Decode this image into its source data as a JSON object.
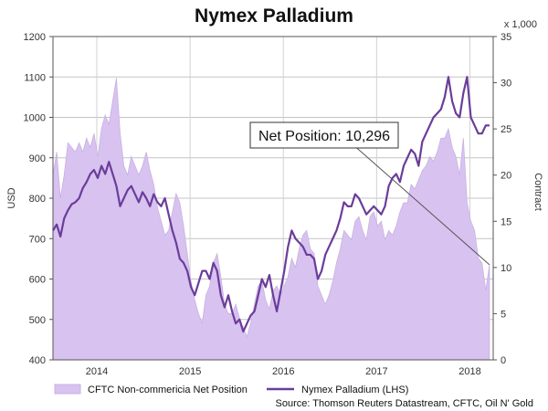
{
  "chart_data": {
    "type": "area+line",
    "title": "Nymex Palladium",
    "left_axis": {
      "label": "USD",
      "ylim": [
        400,
        1200
      ],
      "ticks": [
        400,
        500,
        600,
        700,
        800,
        900,
        1000,
        1100,
        1200
      ]
    },
    "right_axis": {
      "label": "Contract",
      "unit_label": "x 1,000",
      "ylim": [
        0,
        35
      ],
      "ticks": [
        0,
        5,
        10,
        15,
        20,
        25,
        30,
        35
      ]
    },
    "x_axis": {
      "xlim": [
        2013.58,
        2018.3
      ],
      "ticks": [
        2014.05,
        2015.05,
        2016.05,
        2017.05,
        2018.05
      ],
      "tick_labels": [
        "2014",
        "2015",
        "2016",
        "2017",
        "2018"
      ]
    },
    "grid": true,
    "series": [
      {
        "name": "CFTC Non-commericia Net Position",
        "type": "area",
        "axis": "right",
        "color": "#d8c2f0",
        "edge_color": "#c8b2e2",
        "x": [
          2013.58,
          2013.62,
          2013.66,
          2013.7,
          2013.74,
          2013.78,
          2013.82,
          2013.86,
          2013.9,
          2013.94,
          2013.98,
          2014.02,
          2014.06,
          2014.1,
          2014.14,
          2014.18,
          2014.22,
          2014.26,
          2014.3,
          2014.34,
          2014.38,
          2014.42,
          2014.46,
          2014.5,
          2014.54,
          2014.58,
          2014.62,
          2014.66,
          2014.7,
          2014.74,
          2014.78,
          2014.82,
          2014.86,
          2014.9,
          2014.94,
          2014.98,
          2015.02,
          2015.06,
          2015.1,
          2015.14,
          2015.18,
          2015.22,
          2015.26,
          2015.3,
          2015.34,
          2015.38,
          2015.42,
          2015.46,
          2015.5,
          2015.54,
          2015.58,
          2015.62,
          2015.66,
          2015.7,
          2015.74,
          2015.78,
          2015.82,
          2015.86,
          2015.9,
          2015.94,
          2015.98,
          2016.02,
          2016.06,
          2016.1,
          2016.14,
          2016.18,
          2016.22,
          2016.26,
          2016.3,
          2016.34,
          2016.38,
          2016.42,
          2016.46,
          2016.5,
          2016.54,
          2016.58,
          2016.62,
          2016.66,
          2016.7,
          2016.74,
          2016.78,
          2016.82,
          2016.86,
          2016.9,
          2016.94,
          2016.98,
          2017.02,
          2017.06,
          2017.1,
          2017.14,
          2017.18,
          2017.22,
          2017.26,
          2017.3,
          2017.34,
          2017.38,
          2017.42,
          2017.46,
          2017.5,
          2017.54,
          2017.58,
          2017.62,
          2017.66,
          2017.7,
          2017.74,
          2017.78,
          2017.82,
          2017.86,
          2017.9,
          2017.94,
          2017.98,
          2018.02,
          2018.06,
          2018.1,
          2018.14,
          2018.18,
          2018.22,
          2018.26
        ],
        "values": [
          20.0,
          22.5,
          17.5,
          20.0,
          23.5,
          23.0,
          22.5,
          23.5,
          22.5,
          24.0,
          23.0,
          24.5,
          22.0,
          25.0,
          26.5,
          25.5,
          28.0,
          30.5,
          24.5,
          21.0,
          20.0,
          22.0,
          21.0,
          20.0,
          21.0,
          22.5,
          20.5,
          19.0,
          16.5,
          15.0,
          13.5,
          14.0,
          16.0,
          18.0,
          17.0,
          14.5,
          11.5,
          8.5,
          6.5,
          5.0,
          4.0,
          7.0,
          8.0,
          10.5,
          11.5,
          9.0,
          6.0,
          5.0,
          5.0,
          6.0,
          4.5,
          3.5,
          2.5,
          4.0,
          6.0,
          8.0,
          8.5,
          6.5,
          5.5,
          7.5,
          8.0,
          7.0,
          8.0,
          9.0,
          11.0,
          10.0,
          12.0,
          13.5,
          14.0,
          12.0,
          11.5,
          8.0,
          7.0,
          6.0,
          7.0,
          8.5,
          10.5,
          12.0,
          14.0,
          13.5,
          13.0,
          15.0,
          15.5,
          14.0,
          13.0,
          15.5,
          16.0,
          14.5,
          15.0,
          13.0,
          14.0,
          13.5,
          14.5,
          16.0,
          17.0,
          17.0,
          19.0,
          18.5,
          19.5,
          20.5,
          21.0,
          22.0,
          21.5,
          22.5,
          24.0,
          24.0,
          25.0,
          23.0,
          22.0,
          20.0,
          24.0,
          17.0,
          15.0,
          14.0,
          11.0,
          10.5,
          7.5,
          10.296
        ]
      },
      {
        "name": "Nymex Palladium (LHS)",
        "type": "line",
        "axis": "left",
        "color": "#6a3d9a",
        "x": [
          2013.58,
          2013.62,
          2013.66,
          2013.7,
          2013.74,
          2013.78,
          2013.82,
          2013.86,
          2013.9,
          2013.94,
          2013.98,
          2014.02,
          2014.06,
          2014.1,
          2014.14,
          2014.18,
          2014.22,
          2014.26,
          2014.3,
          2014.34,
          2014.38,
          2014.42,
          2014.46,
          2014.5,
          2014.54,
          2014.58,
          2014.62,
          2014.66,
          2014.7,
          2014.74,
          2014.78,
          2014.82,
          2014.86,
          2014.9,
          2014.94,
          2014.98,
          2015.02,
          2015.06,
          2015.1,
          2015.14,
          2015.18,
          2015.22,
          2015.26,
          2015.3,
          2015.34,
          2015.38,
          2015.42,
          2015.46,
          2015.5,
          2015.54,
          2015.58,
          2015.62,
          2015.66,
          2015.7,
          2015.74,
          2015.78,
          2015.82,
          2015.86,
          2015.9,
          2015.94,
          2015.98,
          2016.02,
          2016.06,
          2016.1,
          2016.14,
          2016.18,
          2016.22,
          2016.26,
          2016.3,
          2016.34,
          2016.38,
          2016.42,
          2016.46,
          2016.5,
          2016.54,
          2016.58,
          2016.62,
          2016.66,
          2016.7,
          2016.74,
          2016.78,
          2016.82,
          2016.86,
          2016.9,
          2016.94,
          2016.98,
          2017.02,
          2017.06,
          2017.1,
          2017.14,
          2017.18,
          2017.22,
          2017.26,
          2017.3,
          2017.34,
          2017.38,
          2017.42,
          2017.46,
          2017.5,
          2017.54,
          2017.58,
          2017.62,
          2017.66,
          2017.7,
          2017.74,
          2017.78,
          2017.82,
          2017.86,
          2017.9,
          2017.94,
          2017.98,
          2018.02,
          2018.06,
          2018.1,
          2018.14,
          2018.18,
          2018.22,
          2018.26
        ],
        "values": [
          720,
          735,
          705,
          750,
          770,
          785,
          790,
          800,
          825,
          840,
          860,
          870,
          850,
          880,
          860,
          890,
          860,
          830,
          780,
          800,
          820,
          830,
          810,
          790,
          815,
          800,
          780,
          810,
          790,
          780,
          800,
          760,
          720,
          690,
          650,
          640,
          620,
          580,
          560,
          590,
          620,
          620,
          600,
          640,
          620,
          560,
          530,
          560,
          520,
          490,
          500,
          470,
          490,
          510,
          520,
          560,
          600,
          580,
          610,
          560,
          520,
          570,
          620,
          680,
          720,
          700,
          690,
          680,
          660,
          660,
          650,
          600,
          620,
          660,
          680,
          700,
          720,
          750,
          790,
          780,
          780,
          810,
          800,
          780,
          760,
          770,
          780,
          770,
          760,
          780,
          830,
          850,
          860,
          840,
          880,
          900,
          920,
          910,
          880,
          940,
          960,
          980,
          1000,
          1010,
          1020,
          1050,
          1100,
          1040,
          1010,
          1000,
          1060,
          1100,
          1000,
          980,
          960,
          960,
          980,
          980
        ]
      }
    ],
    "annotation": {
      "text": "Net Position: 10,296",
      "target_x": 2018.26,
      "target_value": 10.296,
      "target_axis": "right"
    },
    "source": "Source: Thomson Reuters Datastream, CFTC, Oil N' Gold"
  }
}
